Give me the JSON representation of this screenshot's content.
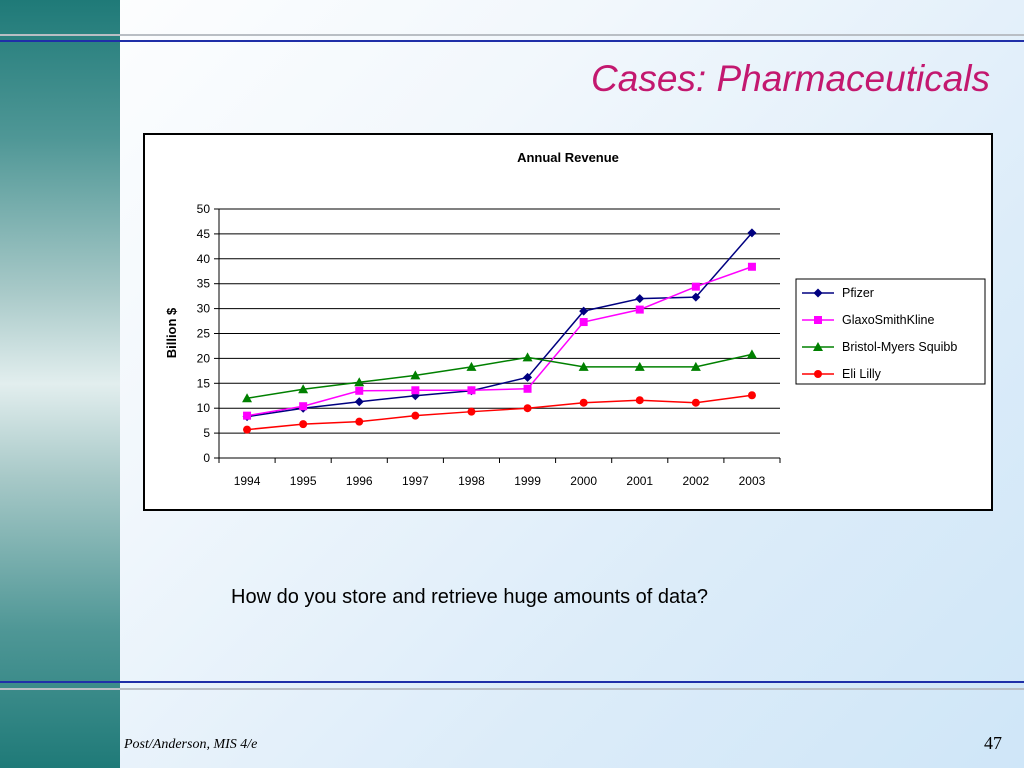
{
  "slide": {
    "title": "Cases: Pharmaceuticals",
    "question": "How do you store and retrieve huge amounts of data?",
    "footer_left": "Post/Anderson, MIS 4/e",
    "page_number": "47",
    "colors": {
      "title": "#c3186f",
      "rule": "#1f2fa8",
      "sidebar": "#1f7a78"
    }
  },
  "chart_data": {
    "type": "line",
    "title": "Annual Revenue",
    "xlabel": "",
    "ylabel": "Billion $",
    "categories": [
      "1994",
      "1995",
      "1996",
      "1997",
      "1998",
      "1999",
      "2000",
      "2001",
      "2002",
      "2003"
    ],
    "ylim": [
      0,
      50
    ],
    "yticks": [
      "0",
      "5",
      "10",
      "15",
      "20",
      "25",
      "30",
      "35",
      "40",
      "45",
      "50"
    ],
    "grid": "horizontal",
    "legend_position": "right",
    "series": [
      {
        "name": "Pfizer",
        "color": "#000080",
        "marker": "diamond",
        "values": [
          8.3,
          10.0,
          11.3,
          12.5,
          13.5,
          16.2,
          29.5,
          32.0,
          32.3,
          45.2
        ]
      },
      {
        "name": "GlaxoSmithKline",
        "color": "#ff00ff",
        "marker": "square",
        "values": [
          8.5,
          10.4,
          13.5,
          13.6,
          13.6,
          13.9,
          27.3,
          29.8,
          34.4,
          38.4
        ]
      },
      {
        "name": "Bristol-Myers Squibb",
        "color": "#008000",
        "marker": "triangle",
        "values": [
          12.0,
          13.8,
          15.2,
          16.6,
          18.3,
          20.2,
          18.3,
          18.3,
          18.3,
          20.8
        ]
      },
      {
        "name": "Eli Lilly",
        "color": "#ff0000",
        "marker": "circle",
        "values": [
          5.7,
          6.8,
          7.3,
          8.5,
          9.3,
          10.0,
          11.1,
          11.6,
          11.1,
          12.6
        ]
      }
    ]
  }
}
